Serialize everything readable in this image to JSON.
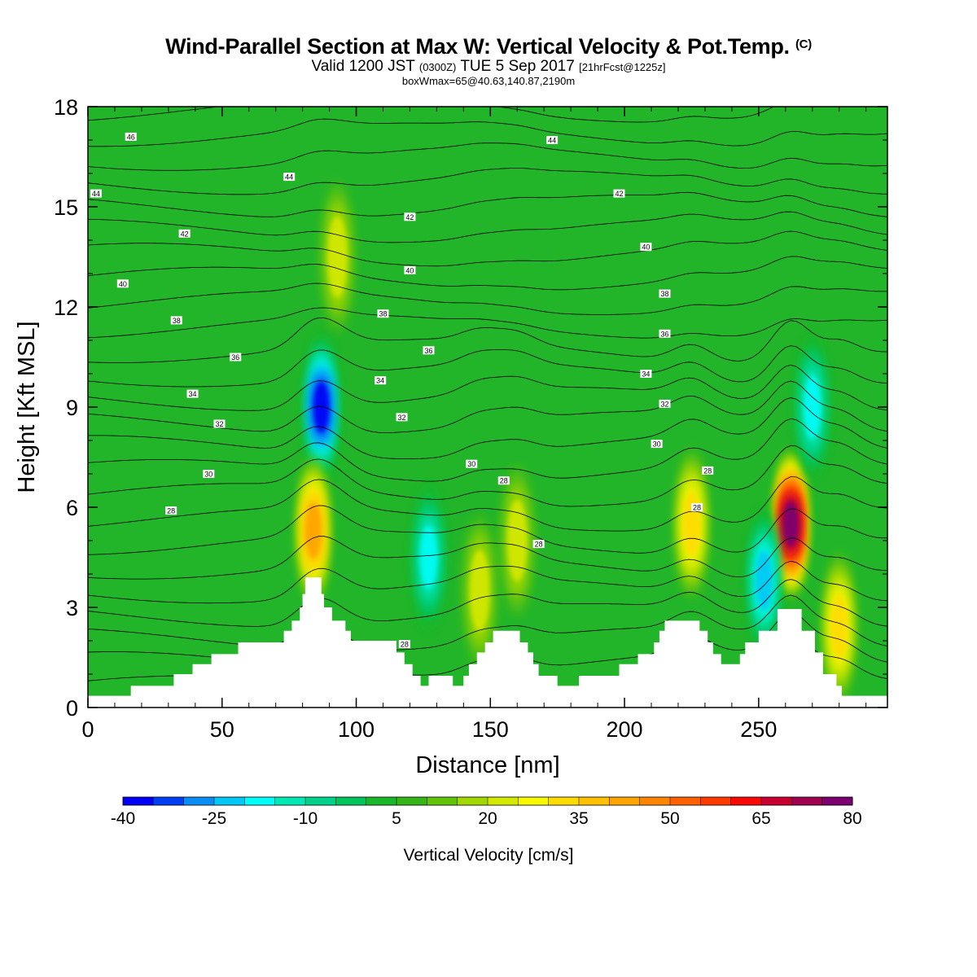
{
  "title": {
    "main": "Wind-Parallel Section at Max W: Vertical Velocity & Pot.Temp.",
    "copyright": "(C)",
    "valid_prefix": "Valid 1200 JST",
    "valid_utc": "(0300Z)",
    "valid_date": "TUE 5 Sep 2017",
    "forecast": "[21hrFcst@1225z]",
    "box": "boxWmax=65@40.63,140.87,2190m"
  },
  "colors": {
    "background_fill": "#22b52a",
    "colorbar": [
      "#0000f5",
      "#0040f5",
      "#0a8cf5",
      "#00c8f5",
      "#00fcf8",
      "#00e8b4",
      "#00d28c",
      "#00c45c",
      "#18b82a",
      "#35b518",
      "#62c408",
      "#a0d800",
      "#d4e800",
      "#f8f800",
      "#ffdc00",
      "#ffc000",
      "#ffa400",
      "#ff8400",
      "#ff6000",
      "#ff3a00",
      "#f80808",
      "#c80030",
      "#a00050",
      "#7a0070",
      "#5a0090"
    ],
    "isentrope": "#000000",
    "terrain": "#ffffff"
  },
  "chart_data": {
    "type": "heatmap",
    "field": "Vertical Velocity",
    "contour_field": "Pot.Temp.",
    "xlabel": "Distance [nm]",
    "ylabel": "Height [Kft MSL]",
    "xlim": [
      0,
      298
    ],
    "ylim": [
      0,
      18
    ],
    "xticks": [
      0,
      50,
      100,
      150,
      200,
      250
    ],
    "yticks": [
      0,
      3,
      6,
      9,
      12,
      15,
      18
    ],
    "colorbar": {
      "label": "Vertical Velocity [cm/s]",
      "min": -40,
      "max": 80,
      "step": 5,
      "tick_labels": [
        "-40",
        "-25",
        "-10",
        "5",
        "20",
        "35",
        "50",
        "65",
        "80"
      ]
    },
    "velocity_features": [
      {
        "x": 87,
        "y": 9.0,
        "w": -40
      },
      {
        "x": 84,
        "y": 5.3,
        "w": 40
      },
      {
        "x": 93,
        "y": 13.5,
        "w": 20
      },
      {
        "x": 160,
        "y": 5.0,
        "w": 20
      },
      {
        "x": 146,
        "y": 3.5,
        "w": 20
      },
      {
        "x": 225,
        "y": 5.5,
        "w": 30
      },
      {
        "x": 262,
        "y": 5.5,
        "w": 75
      },
      {
        "x": 280,
        "y": 2.4,
        "w": 30
      },
      {
        "x": 252,
        "y": 3.8,
        "w": -25
      },
      {
        "x": 127,
        "y": 4.5,
        "w": -20
      },
      {
        "x": 270,
        "y": 9.0,
        "w": -20
      }
    ],
    "isentrope_labels": [
      {
        "text": "46",
        "x": 16,
        "y": 17.1
      },
      {
        "text": "44",
        "x": 3,
        "y": 15.4
      },
      {
        "text": "44",
        "x": 75,
        "y": 15.9
      },
      {
        "text": "44",
        "x": 173,
        "y": 17.0
      },
      {
        "text": "42",
        "x": 36,
        "y": 14.2
      },
      {
        "text": "42",
        "x": 120,
        "y": 14.7
      },
      {
        "text": "42",
        "x": 198,
        "y": 15.4
      },
      {
        "text": "40",
        "x": 13,
        "y": 12.7
      },
      {
        "text": "40",
        "x": 120,
        "y": 13.1
      },
      {
        "text": "40",
        "x": 208,
        "y": 13.8
      },
      {
        "text": "38",
        "x": 33,
        "y": 11.6
      },
      {
        "text": "38",
        "x": 110,
        "y": 11.8
      },
      {
        "text": "38",
        "x": 215,
        "y": 12.4
      },
      {
        "text": "36",
        "x": 55,
        "y": 10.5
      },
      {
        "text": "36",
        "x": 127,
        "y": 10.7
      },
      {
        "text": "36",
        "x": 215,
        "y": 11.2
      },
      {
        "text": "34",
        "x": 39,
        "y": 9.4
      },
      {
        "text": "34",
        "x": 109,
        "y": 9.8
      },
      {
        "text": "34",
        "x": 208,
        "y": 10.0
      },
      {
        "text": "32",
        "x": 49,
        "y": 8.5
      },
      {
        "text": "32",
        "x": 117,
        "y": 8.7
      },
      {
        "text": "32",
        "x": 215,
        "y": 9.1
      },
      {
        "text": "30",
        "x": 45,
        "y": 7.0
      },
      {
        "text": "30",
        "x": 143,
        "y": 7.3
      },
      {
        "text": "30",
        "x": 212,
        "y": 7.9
      },
      {
        "text": "28",
        "x": 31,
        "y": 5.9
      },
      {
        "text": "28",
        "x": 155,
        "y": 6.8
      },
      {
        "text": "28",
        "x": 231,
        "y": 7.1
      },
      {
        "text": "28",
        "x": 168,
        "y": 4.9
      },
      {
        "text": "28",
        "x": 227,
        "y": 6.0
      },
      {
        "text": "28",
        "x": 118,
        "y": 1.9
      }
    ],
    "terrain": [
      [
        0,
        0.35
      ],
      [
        16,
        0.35
      ],
      [
        16,
        0.65
      ],
      [
        32,
        0.65
      ],
      [
        32,
        1.0
      ],
      [
        39,
        1.0
      ],
      [
        39,
        1.3
      ],
      [
        46,
        1.3
      ],
      [
        46,
        1.6
      ],
      [
        56,
        1.6
      ],
      [
        56,
        1.95
      ],
      [
        73,
        1.95
      ],
      [
        73,
        2.3
      ],
      [
        76,
        2.3
      ],
      [
        76,
        2.6
      ],
      [
        79,
        2.6
      ],
      [
        79,
        3.0
      ],
      [
        80,
        3.0
      ],
      [
        80,
        3.4
      ],
      [
        81,
        3.4
      ],
      [
        81,
        3.9
      ],
      [
        87,
        3.9
      ],
      [
        87,
        3.4
      ],
      [
        88,
        3.4
      ],
      [
        88,
        3.0
      ],
      [
        91,
        3.0
      ],
      [
        91,
        2.6
      ],
      [
        96,
        2.6
      ],
      [
        96,
        2.3
      ],
      [
        98,
        2.3
      ],
      [
        98,
        2.0
      ],
      [
        115,
        2.0
      ],
      [
        115,
        1.65
      ],
      [
        118,
        1.65
      ],
      [
        118,
        1.3
      ],
      [
        121,
        1.3
      ],
      [
        121,
        0.95
      ],
      [
        124,
        0.95
      ],
      [
        124,
        0.65
      ],
      [
        127,
        0.65
      ],
      [
        127,
        0.95
      ],
      [
        136,
        0.95
      ],
      [
        136,
        0.65
      ],
      [
        140,
        0.65
      ],
      [
        140,
        0.95
      ],
      [
        142,
        0.95
      ],
      [
        142,
        1.3
      ],
      [
        145,
        1.3
      ],
      [
        145,
        1.65
      ],
      [
        148,
        1.65
      ],
      [
        148,
        1.95
      ],
      [
        151,
        1.95
      ],
      [
        151,
        2.3
      ],
      [
        161,
        2.3
      ],
      [
        161,
        1.95
      ],
      [
        164,
        1.95
      ],
      [
        164,
        1.65
      ],
      [
        166,
        1.65
      ],
      [
        166,
        1.3
      ],
      [
        168,
        1.3
      ],
      [
        168,
        0.95
      ],
      [
        175,
        0.95
      ],
      [
        175,
        0.65
      ],
      [
        183,
        0.65
      ],
      [
        183,
        0.95
      ],
      [
        198,
        0.95
      ],
      [
        198,
        1.3
      ],
      [
        205,
        1.3
      ],
      [
        205,
        1.6
      ],
      [
        211,
        1.6
      ],
      [
        211,
        1.95
      ],
      [
        213,
        1.95
      ],
      [
        213,
        2.3
      ],
      [
        215,
        2.3
      ],
      [
        215,
        2.6
      ],
      [
        228,
        2.6
      ],
      [
        228,
        2.3
      ],
      [
        231,
        2.3
      ],
      [
        231,
        1.95
      ],
      [
        233,
        1.95
      ],
      [
        233,
        1.6
      ],
      [
        236,
        1.6
      ],
      [
        236,
        1.3
      ],
      [
        243,
        1.3
      ],
      [
        243,
        1.6
      ],
      [
        245,
        1.6
      ],
      [
        245,
        1.95
      ],
      [
        250,
        1.95
      ],
      [
        250,
        2.3
      ],
      [
        257,
        2.3
      ],
      [
        257,
        2.95
      ],
      [
        266,
        2.95
      ],
      [
        266,
        2.3
      ],
      [
        271,
        2.3
      ],
      [
        271,
        1.65
      ],
      [
        274,
        1.65
      ],
      [
        274,
        1.0
      ],
      [
        279,
        1.0
      ],
      [
        279,
        0.65
      ],
      [
        281,
        0.65
      ],
      [
        281,
        0.35
      ],
      [
        298,
        0.35
      ],
      [
        298,
        0
      ],
      [
        0,
        0
      ]
    ]
  }
}
